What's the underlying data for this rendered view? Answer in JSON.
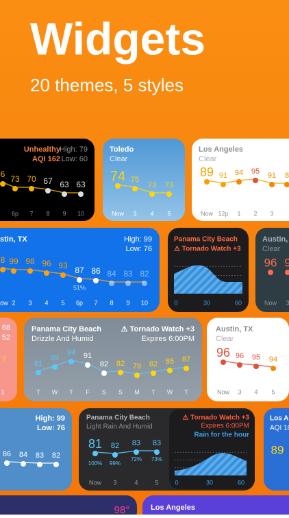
{
  "header": {
    "title": "Widgets",
    "subtitle": "20 themes, 5 styles"
  },
  "widgets": [
    {
      "lines": [
        "Unhealthy",
        "High: 79",
        "AQI 162",
        "Low: 60"
      ],
      "temps": [
        "6",
        "73",
        "70",
        "67",
        "63",
        "63"
      ],
      "times": [
        "6p",
        "7",
        "8",
        "9",
        "10"
      ]
    },
    {
      "lines": [
        "Toledo",
        "Clear"
      ],
      "temps": [
        "74",
        "75",
        "73",
        "73"
      ],
      "times": [
        "Now",
        "3",
        "4",
        "5"
      ]
    },
    {
      "lines": [
        "Los Angeles",
        "Clear"
      ],
      "temps": [
        "89",
        "91",
        "94",
        "95",
        "91",
        "8"
      ],
      "times": [
        "Now",
        "12p",
        "1",
        "2",
        "3"
      ]
    },
    {
      "lines": [
        "stin, TX",
        "High: 99",
        "Low: 76"
      ],
      "temps": [
        "8",
        "99",
        "98",
        "96",
        "93",
        "87",
        "86",
        "84",
        "83",
        "82"
      ],
      "times": [
        "ow",
        "2",
        "3",
        "4",
        "5",
        "6p",
        "7",
        "8",
        "9",
        "10"
      ],
      "extras": [
        "51%"
      ]
    },
    {
      "lines": [
        "Panama City Beach",
        "⚠ Tornado Watch +3"
      ],
      "times": [
        "0",
        "30",
        "60"
      ]
    },
    {
      "lines": [
        "Austin, TX",
        "Clear"
      ],
      "temps": [
        "96",
        "9"
      ],
      "times": [
        "Now",
        "3"
      ]
    },
    {
      "lines": [
        "68",
        "52"
      ],
      "temps": [
        "7"
      ],
      "times": [
        "1"
      ]
    },
    {
      "lines": [
        "Panama City Beach",
        "Drizzle And Humid",
        "⚠ Tornado Watch +3",
        "Expires 6:00PM"
      ],
      "temps": [
        "81",
        "89",
        "94",
        "91",
        "82",
        "82",
        "79",
        "82",
        "85",
        "87"
      ],
      "times": [
        "T",
        "W",
        "T",
        "F",
        "S",
        "S",
        "M",
        "T",
        "W",
        "T"
      ]
    },
    {
      "lines": [
        "Austin, TX",
        "Clear"
      ],
      "temps": [
        "96",
        "96",
        "95",
        "94"
      ],
      "times": [
        "Now",
        "3",
        "4",
        "5"
      ]
    },
    {
      "lines": [
        "High: 99",
        "Low: 76"
      ],
      "temps": [
        "86",
        "84",
        "83",
        "82"
      ]
    },
    {
      "lines": [
        "Panama City Beach",
        "Light Rain And Humid",
        "⚠ Tornado Watch +3",
        "Expires 6:00PM",
        "Rain for the hour"
      ],
      "temps": [
        "81",
        "82",
        "83",
        "83"
      ],
      "extras": [
        "100%",
        "99%",
        "72%",
        "73%"
      ],
      "times": [
        "Now",
        "3",
        "4",
        "5",
        "0",
        "30",
        "60"
      ]
    },
    {
      "lines": [
        "Los An",
        "AQI 16"
      ],
      "temps": [
        "89"
      ]
    },
    {
      "temps": [
        "98°"
      ]
    },
    {
      "lines": [
        "Los Angeles"
      ]
    }
  ]
}
